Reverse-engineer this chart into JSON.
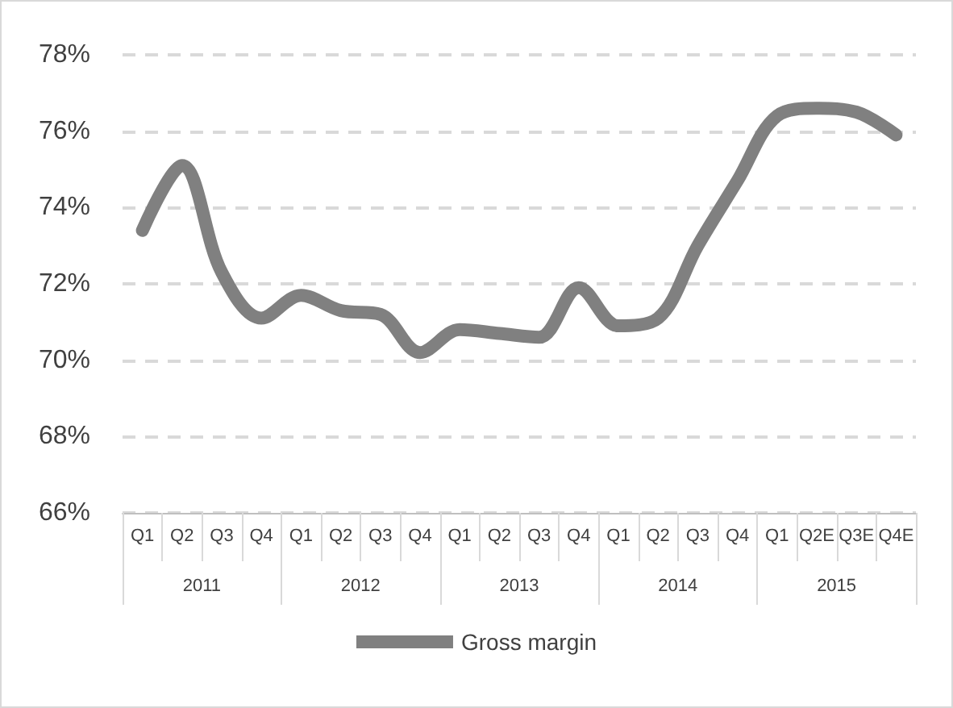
{
  "chart_data": {
    "type": "line",
    "categories": [
      "Q1",
      "Q2",
      "Q3",
      "Q4",
      "Q1",
      "Q2",
      "Q3",
      "Q4",
      "Q1",
      "Q2",
      "Q3",
      "Q4",
      "Q1",
      "Q2",
      "Q3",
      "Q4",
      "Q1",
      "Q2E",
      "Q3E",
      "Q4E"
    ],
    "series": [
      {
        "name": "Gross margin",
        "color": "#808080",
        "values": [
          73.4,
          75.1,
          72.3,
          71.1,
          71.7,
          71.3,
          71.2,
          70.2,
          70.8,
          70.7,
          70.6,
          71.9,
          70.9,
          71.1,
          73.0,
          74.7,
          76.4,
          76.6,
          76.5,
          75.9
        ]
      }
    ],
    "ylim": [
      66,
      78
    ],
    "yticks": [
      {
        "value": 66,
        "label": "66%"
      },
      {
        "value": 68,
        "label": "68%"
      },
      {
        "value": 70,
        "label": "70%"
      },
      {
        "value": 72,
        "label": "72%"
      },
      {
        "value": 74,
        "label": "74%"
      },
      {
        "value": 76,
        "label": "76%"
      },
      {
        "value": 78,
        "label": "78%"
      }
    ],
    "annotations": [
      "2011",
      "2012",
      "2013",
      "2014",
      "2015"
    ],
    "grid": "y",
    "legend": "bottom",
    "line_style": "solid"
  }
}
